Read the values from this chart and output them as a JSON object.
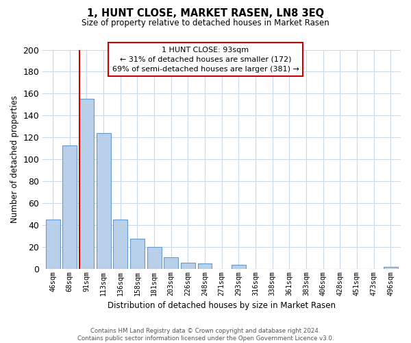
{
  "title": "1, HUNT CLOSE, MARKET RASEN, LN8 3EQ",
  "subtitle": "Size of property relative to detached houses in Market Rasen",
  "xlabel": "Distribution of detached houses by size in Market Rasen",
  "ylabel": "Number of detached properties",
  "bar_labels": [
    "46sqm",
    "68sqm",
    "91sqm",
    "113sqm",
    "136sqm",
    "158sqm",
    "181sqm",
    "203sqm",
    "226sqm",
    "248sqm",
    "271sqm",
    "293sqm",
    "316sqm",
    "338sqm",
    "361sqm",
    "383sqm",
    "406sqm",
    "428sqm",
    "451sqm",
    "473sqm",
    "496sqm"
  ],
  "bar_values": [
    45,
    113,
    155,
    124,
    45,
    28,
    20,
    11,
    6,
    5,
    0,
    4,
    0,
    0,
    0,
    0,
    0,
    0,
    0,
    0,
    2
  ],
  "bar_color": "#b8d0ea",
  "bar_edge_color": "#6699cc",
  "vline_x_index": 2,
  "vline_color": "#cc0000",
  "ylim": [
    0,
    200
  ],
  "yticks": [
    0,
    20,
    40,
    60,
    80,
    100,
    120,
    140,
    160,
    180,
    200
  ],
  "annotation_line1": "1 HUNT CLOSE: 93sqm",
  "annotation_line2": "← 31% of detached houses are smaller (172)",
  "annotation_line3": "69% of semi-detached houses are larger (381) →",
  "footer_text": "Contains HM Land Registry data © Crown copyright and database right 2024.\nContains public sector information licensed under the Open Government Licence v3.0.",
  "background_color": "#ffffff",
  "grid_color": "#c8d8e8"
}
